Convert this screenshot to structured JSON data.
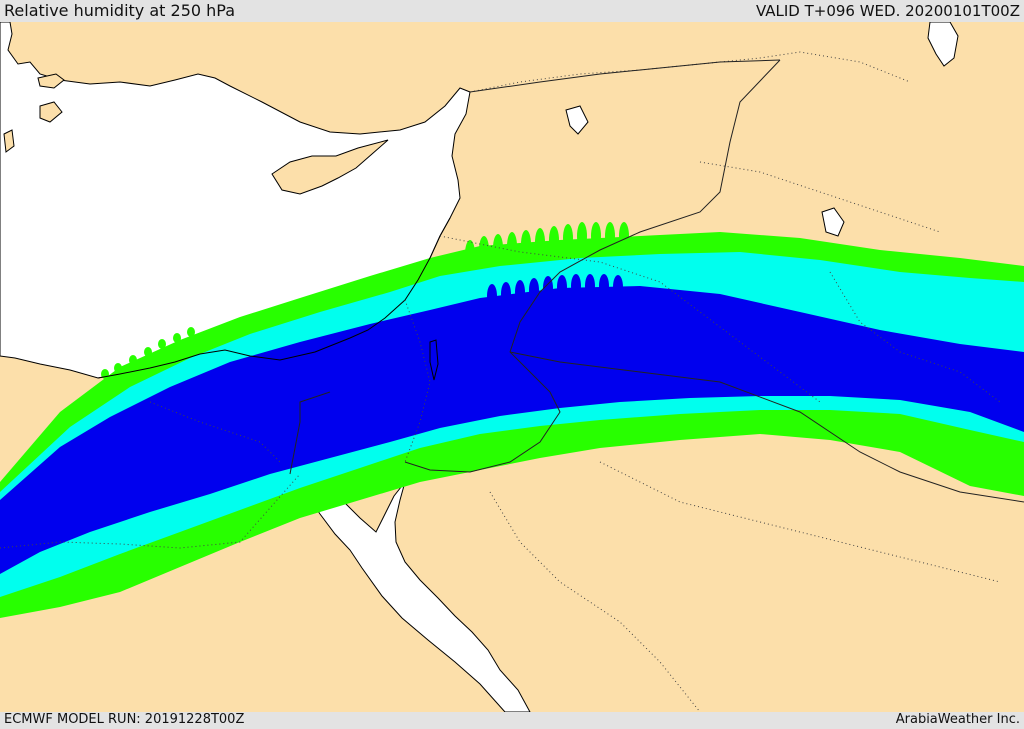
{
  "header": {
    "title": "Relative humidity at 250 hPa",
    "valid_time": "VALID T+096 WED. 20200101T00Z"
  },
  "footer": {
    "model_run": "ECMWF MODEL RUN: 20191228T00Z",
    "credit": "ArabiaWeather Inc."
  },
  "map": {
    "colors": {
      "land": "#fcdfaa",
      "sea": "#ffffff",
      "rh_band_outer": "#28ff00",
      "rh_band_middle": "#00ffee",
      "rh_band_inner": "#0000ee",
      "borders": "#333333",
      "coastline": "#000000"
    }
  }
}
